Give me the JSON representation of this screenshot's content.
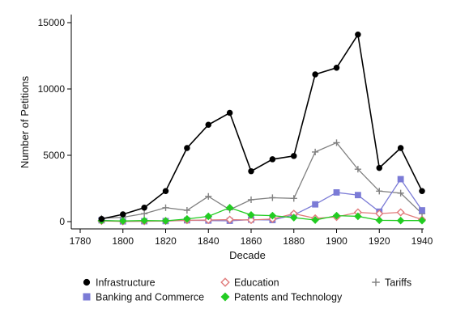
{
  "chart_data": {
    "type": "line",
    "xlabel": "Decade",
    "ylabel": "Number of Petitions",
    "xlim": [
      1780,
      1940
    ],
    "ylim": [
      0,
      15000
    ],
    "x_ticks": [
      "1780",
      "1800",
      "1820",
      "1840",
      "1860",
      "1880",
      "1900",
      "1920",
      "1940"
    ],
    "y_ticks": [
      "0",
      "5000",
      "10000",
      "15000"
    ],
    "grid": false,
    "legend_position": "bottom",
    "x": [
      1790,
      1800,
      1810,
      1820,
      1830,
      1840,
      1850,
      1860,
      1870,
      1880,
      1890,
      1900,
      1910,
      1920,
      1930,
      1940
    ],
    "series": [
      {
        "name": "Infrastructure",
        "color": "#000000",
        "marker": "circle",
        "values": [
          200,
          550,
          1050,
          2300,
          5550,
          7300,
          8200,
          3800,
          4700,
          4950,
          11100,
          11600,
          14100,
          4050,
          5550,
          2300
        ]
      },
      {
        "name": "Banking and Commerce",
        "color": "#7b7bd6",
        "marker": "square",
        "values": [
          100,
          20,
          30,
          40,
          100,
          80,
          60,
          150,
          120,
          500,
          1300,
          2200,
          2000,
          750,
          3200,
          850
        ]
      },
      {
        "name": "Tariffs",
        "color": "#808080",
        "marker": "plus",
        "values": [
          250,
          330,
          600,
          1050,
          850,
          1900,
          900,
          1650,
          1800,
          1750,
          5250,
          5950,
          3950,
          2300,
          2150,
          600
        ]
      },
      {
        "name": "Education",
        "color": "#e07a7a",
        "marker": "diamond-hollow",
        "values": [
          50,
          20,
          30,
          50,
          100,
          120,
          150,
          120,
          200,
          600,
          250,
          350,
          700,
          600,
          700,
          150
        ]
      },
      {
        "name": "Patents and Technology",
        "color": "#22cc22",
        "marker": "diamond",
        "values": [
          80,
          50,
          80,
          60,
          200,
          400,
          1050,
          500,
          450,
          300,
          120,
          450,
          400,
          100,
          80,
          80
        ]
      }
    ],
    "legend": {
      "items": [
        "Infrastructure",
        "Education",
        "Tariffs",
        "Banking and Commerce",
        "Patents and Technology"
      ]
    }
  }
}
